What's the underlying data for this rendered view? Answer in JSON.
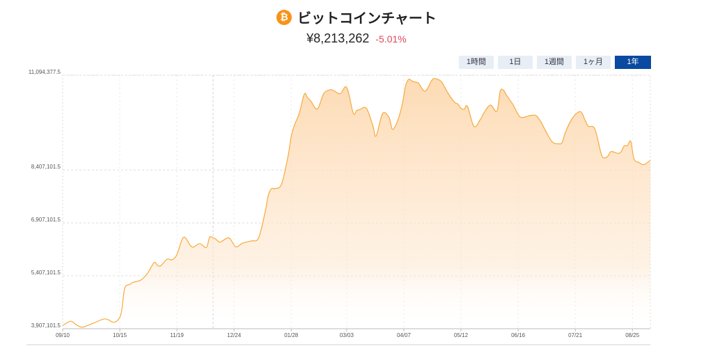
{
  "header": {
    "title": "ビットコインチャート",
    "icon": "bitcoin-icon",
    "icon_glyph": "₿",
    "price": "¥8,213,262",
    "change": "-5.01%",
    "change_color": "#e0485a"
  },
  "range_tabs": [
    {
      "label": "1時間",
      "active": false
    },
    {
      "label": "1日",
      "active": false
    },
    {
      "label": "1週間",
      "active": false
    },
    {
      "label": "1ヶ月",
      "active": false
    },
    {
      "label": "1年",
      "active": true
    }
  ],
  "chart_data": {
    "type": "area",
    "title": "",
    "xlabel": "",
    "ylabel": "",
    "line_color": "#f7a93b",
    "fill_color": "#fde3c6",
    "ylim": [
      3907101.5,
      11094377.5
    ],
    "y_ticks": [
      "3,907,101.5",
      "5,407,101.5",
      "6,907,101.5",
      "8,407,101.5",
      "11,094,377.5"
    ],
    "y_tick_values": [
      3907101.5,
      5407101.5,
      6907101.5,
      8407101.5,
      11094377.5
    ],
    "x_ticks": [
      "09/10",
      "10/15",
      "11/19",
      "12/24",
      "01/28",
      "03/03",
      "04/07",
      "05/12",
      "06/16",
      "07/21",
      "08/25"
    ],
    "x_tick_days": [
      0,
      35,
      70,
      105,
      140,
      174,
      209,
      244,
      279,
      314,
      349
    ],
    "x_days": [
      0,
      5,
      8,
      12,
      18,
      25,
      28,
      31,
      34,
      36,
      38,
      41,
      43,
      48,
      52,
      56,
      58,
      60,
      64,
      67,
      70,
      74,
      78,
      80,
      84,
      88,
      90,
      92,
      94,
      96,
      98,
      102,
      106,
      110,
      114,
      116,
      120,
      124,
      126,
      128,
      130,
      134,
      138,
      140,
      142,
      145,
      148,
      150,
      152,
      156,
      160,
      164,
      166,
      170,
      174,
      178,
      180,
      182,
      186,
      190,
      192,
      196,
      200,
      202,
      205,
      208,
      210,
      212,
      214,
      216,
      218,
      222,
      226,
      228,
      232,
      236,
      240,
      242,
      244,
      246,
      248,
      252,
      256,
      258,
      262,
      266,
      268,
      270,
      272,
      276,
      280,
      284,
      286,
      288,
      290,
      293,
      296,
      300,
      304,
      306,
      308,
      312,
      316,
      318,
      320,
      322,
      326,
      330,
      332,
      334,
      336,
      340,
      342,
      344,
      346,
      348,
      350,
      353,
      356,
      360
    ],
    "series": [
      {
        "values": [
          4000000,
          4120000,
          4030000,
          3950000,
          4050000,
          4180000,
          4160000,
          4090000,
          4160000,
          4380000,
          5050000,
          5160000,
          5220000,
          5290000,
          5480000,
          5780000,
          5710000,
          5690000,
          5880000,
          5860000,
          6010000,
          6500000,
          6280000,
          6220000,
          6320000,
          6210000,
          6500000,
          6490000,
          6440000,
          6360000,
          6400000,
          6480000,
          6230000,
          6330000,
          6380000,
          6400000,
          6480000,
          7210000,
          7700000,
          7880000,
          7880000,
          8000000,
          8780000,
          9360000,
          9680000,
          10020000,
          10560000,
          10460000,
          10360000,
          10140000,
          10580000,
          10680000,
          10660000,
          10570000,
          10750000,
          10020000,
          10090000,
          10120000,
          10160000,
          9670000,
          9370000,
          10010000,
          9890000,
          9560000,
          9780000,
          10260000,
          10780000,
          10980000,
          10930000,
          10900000,
          10870000,
          10640000,
          10940000,
          11000000,
          10910000,
          10590000,
          10330000,
          10280000,
          10160000,
          10130000,
          10210000,
          9640000,
          9850000,
          10020000,
          10250000,
          10070000,
          10640000,
          10670000,
          10520000,
          10250000,
          9920000,
          9920000,
          9950000,
          9960000,
          9950000,
          9770000,
          9500000,
          9200000,
          9150000,
          9190000,
          9480000,
          9860000,
          10050000,
          10030000,
          9820000,
          9650000,
          9570000,
          8850000,
          8750000,
          8800000,
          8930000,
          8880000,
          8920000,
          9090000,
          9100000,
          9220000,
          8720000,
          8620000,
          8560000,
          8680000
        ]
      }
    ],
    "grid": true,
    "legend": "none"
  }
}
